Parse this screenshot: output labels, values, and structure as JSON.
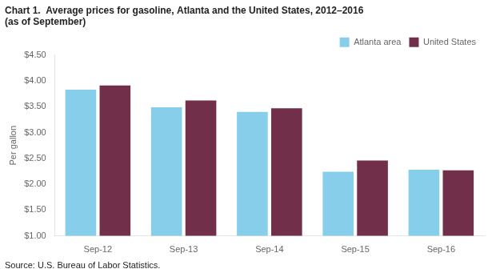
{
  "chart_data": {
    "type": "bar",
    "title": "Chart 1.  Average prices for gasoline, Atlanta and the United States, 2012–2016",
    "subtitle": "(as of September)",
    "y_label": "Per gallon",
    "source": "Source: U.S. Bureau of Labor Statistics.",
    "categories": [
      "Sep-12",
      "Sep-13",
      "Sep-14",
      "Sep-15",
      "Sep-16"
    ],
    "series": [
      {
        "name": "Atlanta area",
        "color": "#87CEEB",
        "values": [
          3.83,
          3.49,
          3.4,
          2.24,
          2.28
        ]
      },
      {
        "name": "United States",
        "color": "#722F4A",
        "values": [
          3.91,
          3.62,
          3.47,
          2.46,
          2.27
        ]
      }
    ],
    "ylim": [
      1.0,
      4.5
    ],
    "yticks": [
      {
        "value": 1.0,
        "label": "$1.00"
      },
      {
        "value": 1.5,
        "label": "$1.50"
      },
      {
        "value": 2.0,
        "label": "$2.00"
      },
      {
        "value": 2.5,
        "label": "$2.50"
      },
      {
        "value": 3.0,
        "label": "$3.00"
      },
      {
        "value": 3.5,
        "label": "$3.50"
      },
      {
        "value": 4.0,
        "label": "$4.00"
      },
      {
        "value": 4.5,
        "label": "$4.50"
      }
    ],
    "legend": "upper right",
    "grid": false
  }
}
